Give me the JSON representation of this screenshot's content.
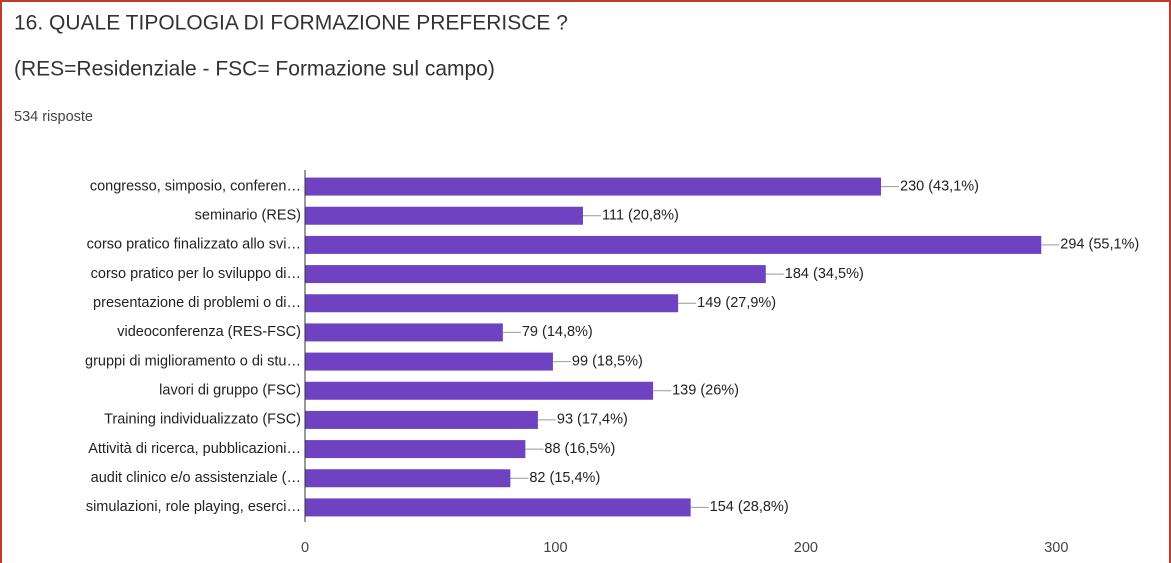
{
  "chart_data": {
    "type": "bar",
    "orientation": "horizontal",
    "title": "16. QUALE TIPOLOGIA DI FORMAZIONE PREFERISCE ?",
    "subtitle": "(RES=Residenziale - FSC= Formazione sul campo)",
    "note": "534 risposte",
    "categories": [
      "congresso, simposio, conferen…",
      "seminario (RES)",
      "corso pratico finalizzato allo svi…",
      "corso pratico per lo sviluppo di…",
      "presentazione di problemi o di…",
      "videoconferenza (RES-FSC)",
      "gruppi di miglioramento o di stu…",
      "lavori di gruppo (FSC)",
      "Training individualizzato (FSC)",
      "Attività di ricerca, pubblicazioni…",
      "audit clinico e/o assistenziale (…",
      "simulazioni, role playing, eserci…"
    ],
    "values": [
      230,
      111,
      294,
      184,
      149,
      79,
      99,
      139,
      93,
      88,
      82,
      154
    ],
    "value_labels": [
      "230 (43,1%)",
      "111 (20,8%)",
      "294 (55,1%)",
      "184 (34,5%)",
      "149 (27,9%)",
      "79 (14,8%)",
      "99 (18,5%)",
      "139 (26%)",
      "93 (17,4%)",
      "88 (16,5%)",
      "82 (15,4%)",
      "154 (28,8%)"
    ],
    "color": "#6f42c1",
    "xlim": [
      0,
      345
    ],
    "xticks": [
      0,
      100,
      200,
      300
    ],
    "grid": false
  }
}
